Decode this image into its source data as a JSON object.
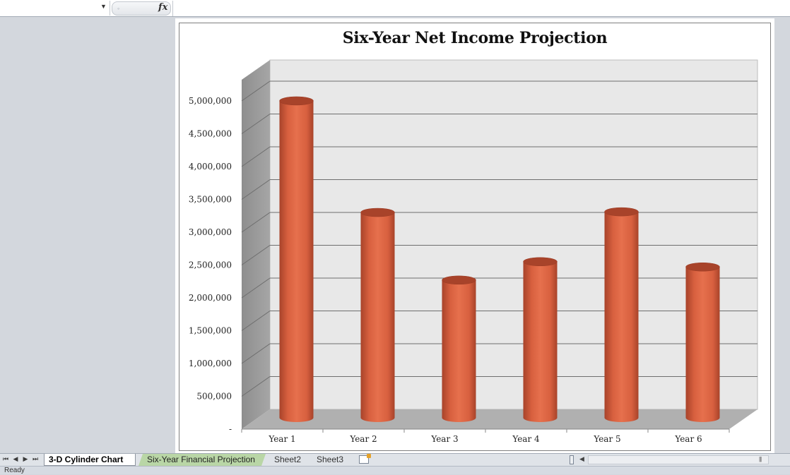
{
  "formula_bar": {
    "fx_label": "fx",
    "name_box_value": "",
    "formula_value": ""
  },
  "chart_data": {
    "type": "bar",
    "subtype": "3d-cylinder",
    "title": "Six-Year Net Income Projection",
    "categories": [
      "Year 1",
      "Year 2",
      "Year 3",
      "Year 4",
      "Year 5",
      "Year 6"
    ],
    "values": [
      4850000,
      3150000,
      2120000,
      2400000,
      3160000,
      2320000
    ],
    "ylim": [
      0,
      5000000
    ],
    "yticks": [
      "-",
      "500,000",
      "1,000,000",
      "1,500,000",
      "2,000,000",
      "2,500,000",
      "3,000,000",
      "3,500,000",
      "4,000,000",
      "4,500,000",
      "5,000,000"
    ],
    "grid": true,
    "legend": "none",
    "colors": {
      "bar": "#d8603f",
      "bar_dark": "#a8432a",
      "wall": "#e8e8e8",
      "side_wall": "#9a9a9a",
      "floor": "#b0b0b0"
    }
  },
  "tabs": {
    "active": "3-D Cylinder Chart",
    "sheet2": "Six-Year Financial Projection",
    "sheet3": "Sheet2",
    "sheet4": "Sheet3"
  },
  "nav": {
    "first": "⏮",
    "prev": "◀",
    "next": "▶",
    "last": "⏭"
  },
  "status": {
    "text": "Ready"
  }
}
